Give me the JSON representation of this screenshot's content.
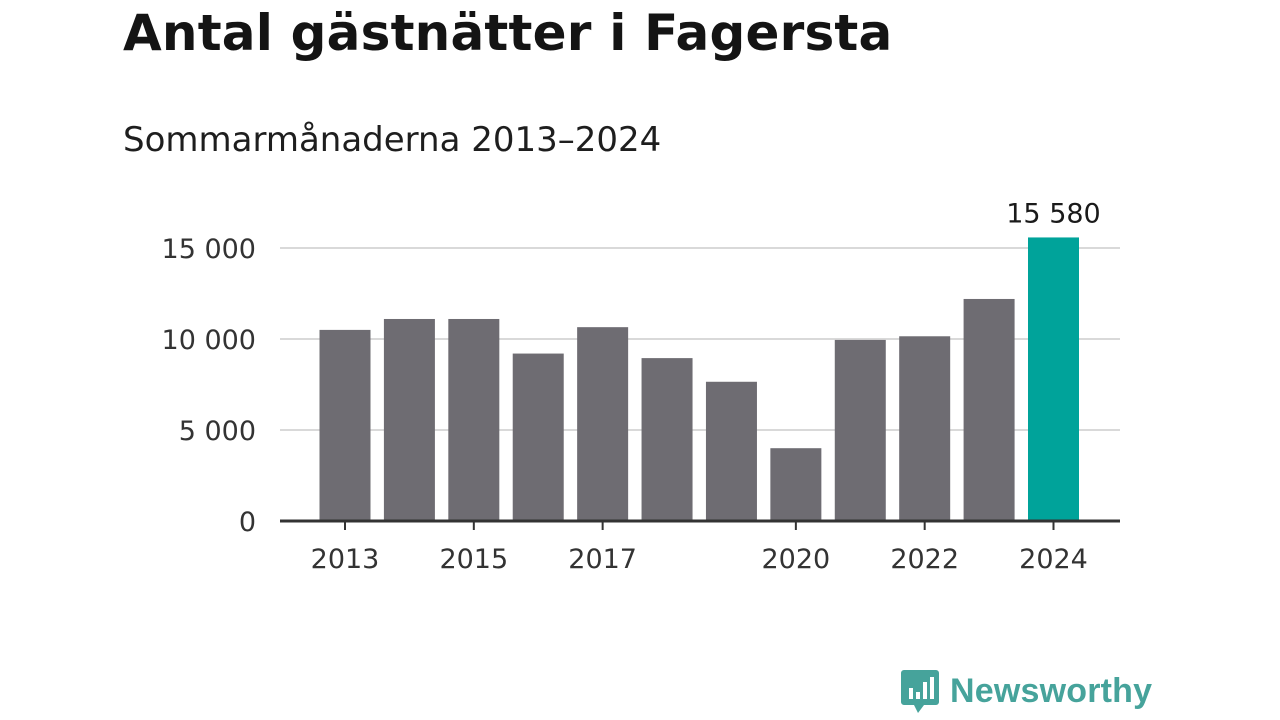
{
  "header": {
    "title": "Antal gästnätter i Fagersta",
    "subtitle": "Sommarmånaderna 2013–2024"
  },
  "brand": {
    "name": "Newsworthy",
    "icon": "newsworthy-logo-icon"
  },
  "colors": {
    "bar": "#6e6c72",
    "highlight": "#00a39a",
    "grid": "#d9d9d9",
    "axis": "#333333"
  },
  "chart_data": {
    "type": "bar",
    "title": "Antal gästnätter i Fagersta",
    "subtitle": "Sommarmånaderna 2013–2024",
    "categories": [
      "2013",
      "2014",
      "2015",
      "2016",
      "2017",
      "2018",
      "2019",
      "2020",
      "2021",
      "2022",
      "2023",
      "2024"
    ],
    "values": [
      10500,
      11100,
      11100,
      9200,
      10650,
      8950,
      7650,
      4000,
      9950,
      10150,
      12200,
      15580
    ],
    "x_tick_labels": [
      "2013",
      "2015",
      "2017",
      "2020",
      "2022",
      "2024"
    ],
    "y_ticks": [
      0,
      5000,
      10000,
      15000
    ],
    "y_tick_labels": [
      "0",
      "5 000",
      "10 000",
      "15 000"
    ],
    "ylim": [
      0,
      16500
    ],
    "grid": true,
    "highlight": {
      "category": "2024",
      "label": "15 580"
    },
    "xlabel": "",
    "ylabel": ""
  }
}
